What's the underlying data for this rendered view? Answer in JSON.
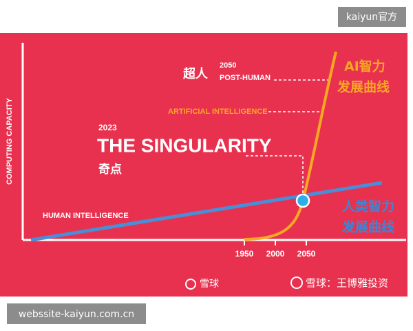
{
  "badge_top": "kaiyun官方",
  "badge_bottom": "webssite-kaiyun.com.cn",
  "axis": {
    "y_label": "COMPUTING CAPACITY",
    "x_ticks": [
      "1950",
      "2000",
      "2050"
    ]
  },
  "singularity": {
    "year": "2023",
    "title": "THE SINGULARITY",
    "subtitle": "奇点"
  },
  "post_human": {
    "label_cn": "超人",
    "year": "2050",
    "label": "POST-HUMAN"
  },
  "ai": {
    "label": "ARTIFICIAL INTELLIGENCE",
    "curve_cn_1": "AI智力",
    "curve_cn_2": "发展曲线"
  },
  "human": {
    "label": "HUMAN INTELLIGENCE",
    "curve_cn_1": "人类智力",
    "curve_cn_2": "发展曲线"
  },
  "watermarks": [
    "雪球",
    "雪球：王博雅投资"
  ]
}
